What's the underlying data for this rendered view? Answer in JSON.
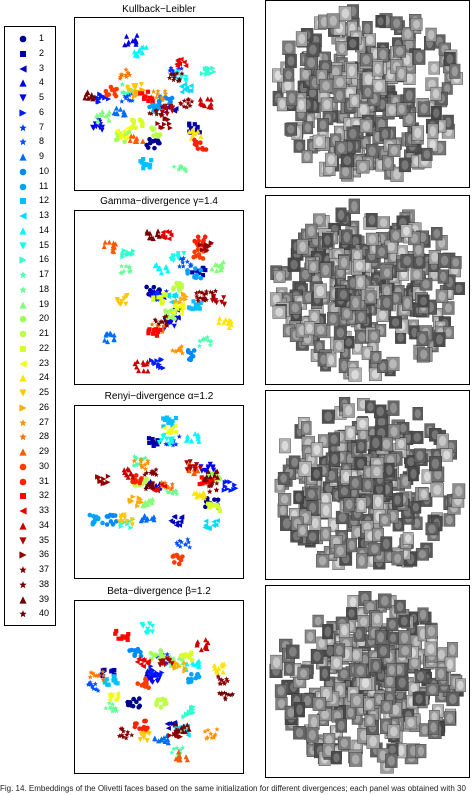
{
  "legend": {
    "labels": [
      "1",
      "2",
      "3",
      "4",
      "5",
      "6",
      "7",
      "8",
      "9",
      "10",
      "11",
      "12",
      "13",
      "14",
      "15",
      "16",
      "17",
      "18",
      "19",
      "20",
      "21",
      "22",
      "23",
      "24",
      "25",
      "26",
      "27",
      "28",
      "29",
      "30",
      "31",
      "32",
      "33",
      "34",
      "35",
      "36",
      "37",
      "38",
      "39",
      "40"
    ],
    "colors": [
      "#00008f",
      "#0000a8",
      "#0000c4",
      "#0000e0",
      "#0000fc",
      "#0018ff",
      "#0034ff",
      "#0050ff",
      "#006cff",
      "#0088ff",
      "#00a4ff",
      "#00c0ff",
      "#00dcff",
      "#00f8ff",
      "#14ffeb",
      "#30ffcf",
      "#4cffb3",
      "#68ff97",
      "#84ff7b",
      "#a0ff5f",
      "#bcff43",
      "#d8ff27",
      "#f4ff0b",
      "#ffe400",
      "#ffc800",
      "#ffac00",
      "#ff9000",
      "#ff7400",
      "#ff5800",
      "#ff3c00",
      "#ff2000",
      "#ff0400",
      "#e80000",
      "#cc0000",
      "#b00000",
      "#940000",
      "#880000",
      "#800000",
      "#780000",
      "#700000"
    ],
    "markers": [
      "circle",
      "square",
      "triangle-left",
      "triangle-up",
      "triangle-down",
      "triangle-right",
      "star",
      "star",
      "triangle-up",
      "circle",
      "circle",
      "square",
      "triangle-left",
      "triangle-up",
      "triangle-down",
      "triangle-right",
      "star",
      "star",
      "triangle-up",
      "circle",
      "circle",
      "square",
      "triangle-left",
      "triangle-up",
      "triangle-down",
      "triangle-right",
      "star",
      "star",
      "triangle-up",
      "circle",
      "circle",
      "square",
      "triangle-left",
      "triangle-up",
      "triangle-down",
      "triangle-right",
      "star",
      "star",
      "triangle-up",
      "star"
    ]
  },
  "panels": [
    {
      "title": "Kullback−Leibler"
    },
    {
      "title": "Gamma−divergence γ=1.4"
    },
    {
      "title": "Renyi−divergence α=1.2"
    },
    {
      "title": "Beta−divergence β=1.2"
    }
  ],
  "caption": "Fig. 14. Embeddings of the Olivetti faces based on the same initialization for different divergences; each panel was obtained with 30"
}
